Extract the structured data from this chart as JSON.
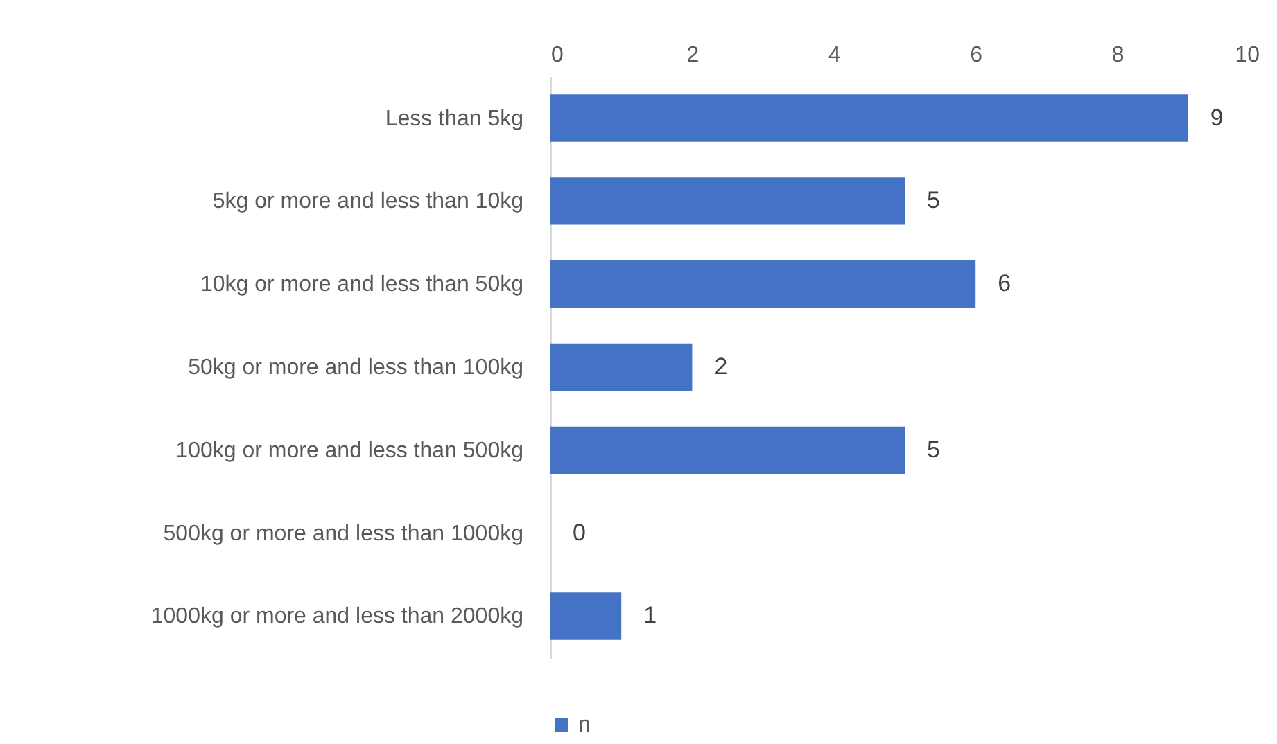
{
  "chart_data": {
    "type": "bar",
    "orientation": "horizontal",
    "categories": [
      "Less than 5kg",
      "5kg or more and less than 10kg",
      "10kg or more and less than 50kg",
      "50kg or more and less than 100kg",
      "100kg or more and less than 500kg",
      "500kg or more and less than 1000kg",
      "1000kg or more and less than 2000kg"
    ],
    "series": [
      {
        "name": "n",
        "color": "#4472c4",
        "values": [
          9,
          5,
          6,
          2,
          5,
          0,
          1
        ]
      }
    ],
    "xlim": [
      0,
      10
    ],
    "xticks": [
      0,
      2,
      4,
      6,
      8,
      10
    ],
    "data_labels": true,
    "legend": "bottom"
  }
}
